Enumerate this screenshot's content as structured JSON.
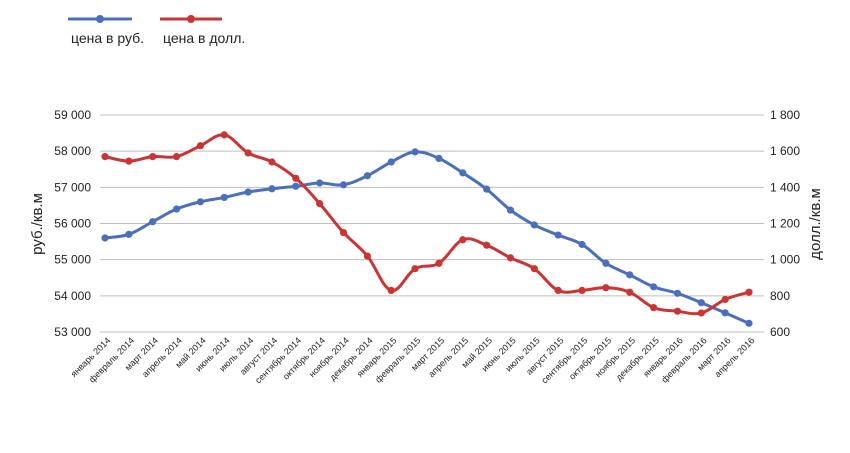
{
  "chart_data": {
    "type": "line",
    "categories": [
      "январь 2014",
      "февраль 2014",
      "март 2014",
      "апрель 2014",
      "май 2014",
      "июнь 2014",
      "июль 2014",
      "август 2014",
      "сентябрь 2014",
      "октябрь 2014",
      "ноябрь 2014",
      "декабрь 2014",
      "январь 2015",
      "февраль 2015",
      "март 2015",
      "апрель 2015",
      "май 2015",
      "июнь 2015",
      "июль 2015",
      "август 2015",
      "сентябрь 2015",
      "октябрь 2015",
      "ноябрь 2015",
      "декабрь 2015",
      "январь 2016",
      "февраль 2016",
      "март 2016",
      "апрель 2016"
    ],
    "y_left": {
      "label": "руб./кв.м",
      "ticks": [
        "53 000",
        "54 000",
        "55 000",
        "56 000",
        "57 000",
        "58 000",
        "59 000"
      ],
      "ylim": [
        53000,
        59000
      ]
    },
    "y_right": {
      "label": "долл./кв.м",
      "ticks": [
        "600",
        "800",
        "1 000",
        "1 200",
        "1 400",
        "1 600",
        "1 800"
      ],
      "ylim": [
        600,
        1800
      ]
    },
    "series": [
      {
        "name": "цена в руб.",
        "axis": "left",
        "color": "#4a6fbf",
        "values": [
          55600,
          55700,
          56050,
          56400,
          56600,
          56720,
          56870,
          56960,
          57030,
          57120,
          57070,
          57320,
          57700,
          57980,
          57800,
          57400,
          56950,
          56370,
          55960,
          55680,
          55420,
          54900,
          54580,
          54250,
          54070,
          53810,
          53530,
          53240
        ]
      },
      {
        "name": "цена в долл.",
        "axis": "right",
        "color": "#cc3333",
        "values": [
          1570,
          1545,
          1570,
          1570,
          1630,
          1690,
          1590,
          1540,
          1450,
          1310,
          1150,
          1020,
          830,
          950,
          980,
          1110,
          1080,
          1010,
          950,
          830,
          830,
          845,
          820,
          735,
          715,
          705,
          780,
          820
        ]
      }
    ],
    "grid": true,
    "legend": "top-left"
  }
}
